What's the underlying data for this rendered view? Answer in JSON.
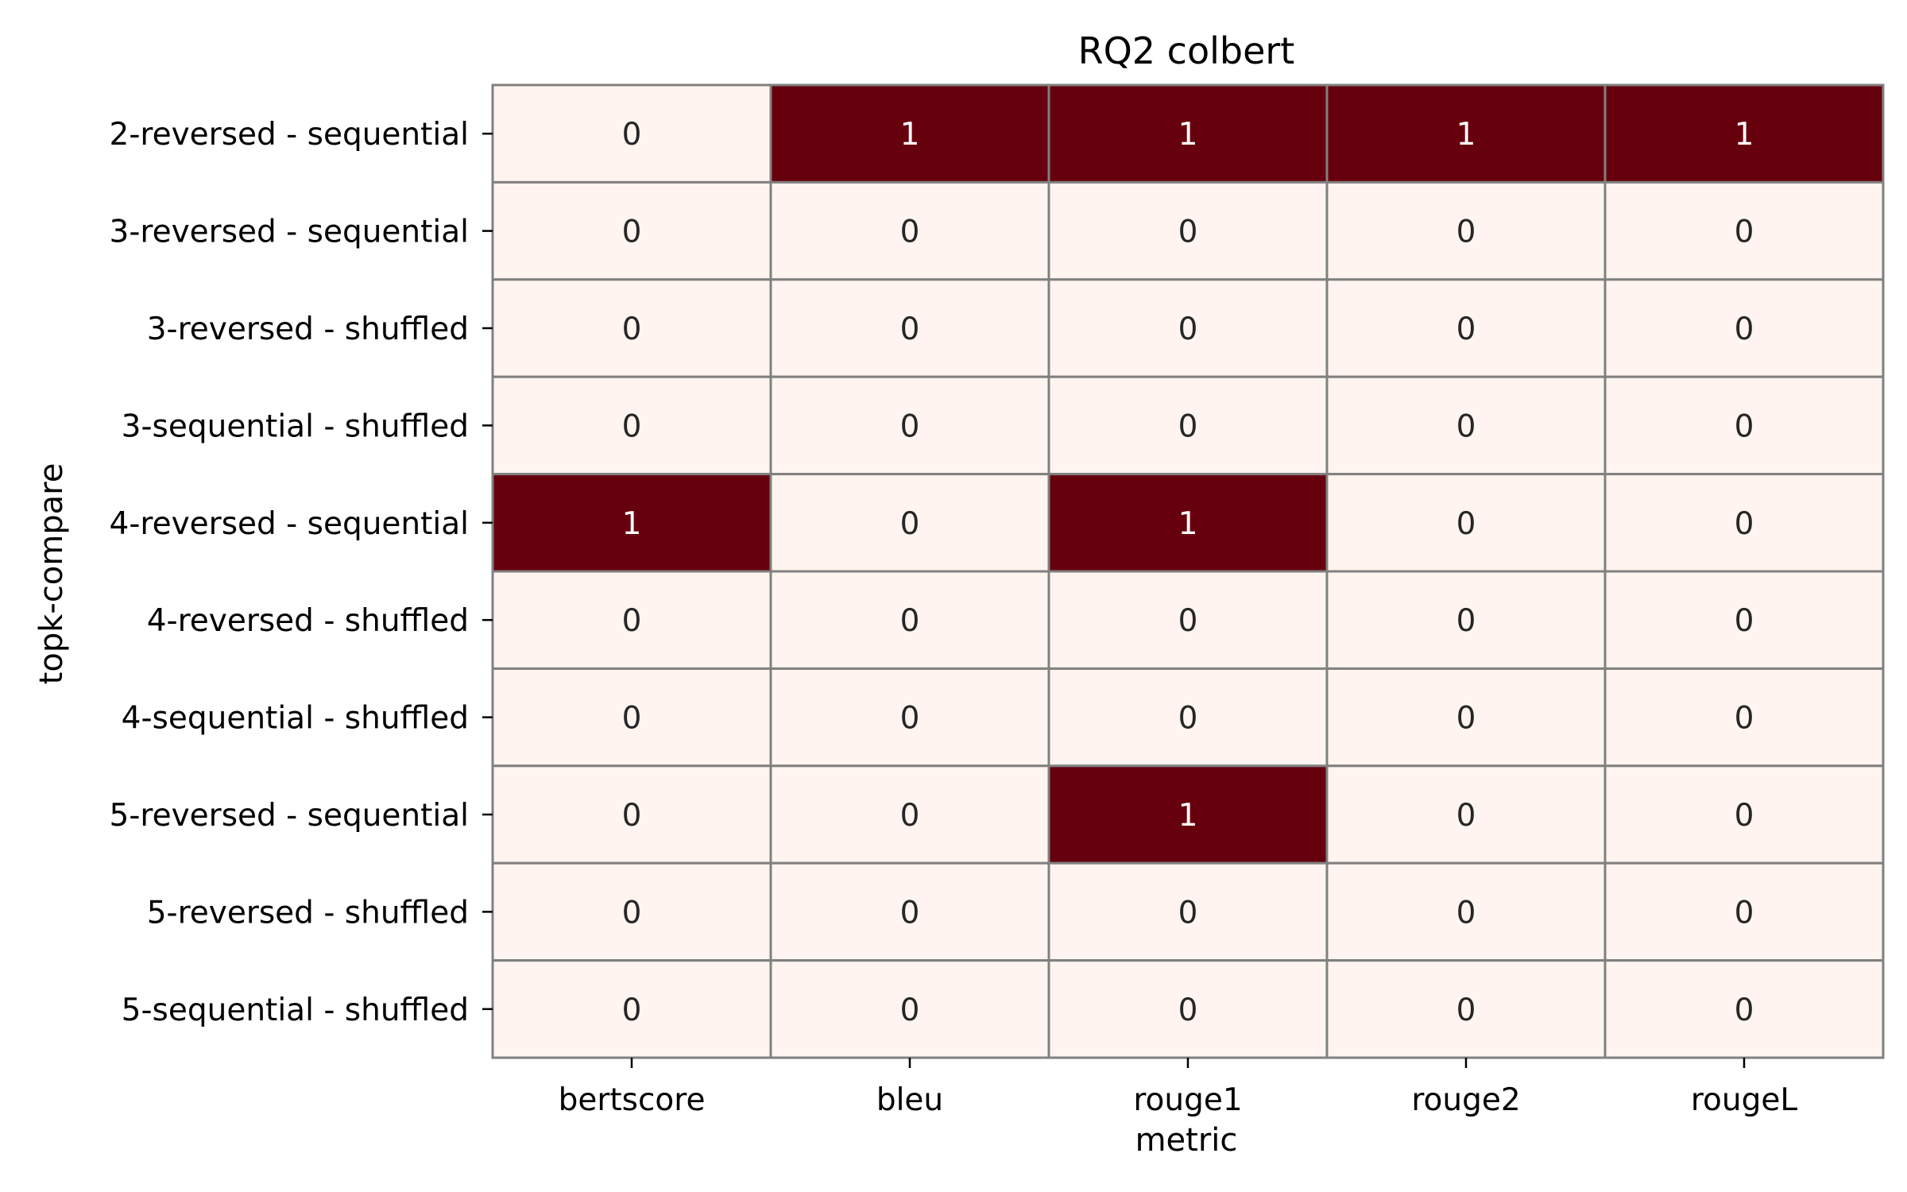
{
  "chart_data": {
    "type": "heatmap",
    "title": "RQ2 colbert",
    "xlabel": "metric",
    "ylabel": "topk-compare",
    "x_categories": [
      "bertscore",
      "bleu",
      "rouge1",
      "rouge2",
      "rougeL"
    ],
    "y_categories": [
      "2-reversed - sequential",
      "3-reversed - sequential",
      "3-reversed - shuffled",
      "3-sequential - shuffled",
      "4-reversed - sequential",
      "4-reversed - shuffled",
      "4-sequential - shuffled",
      "5-reversed - sequential",
      "5-reversed - shuffled",
      "5-sequential - shuffled"
    ],
    "values": [
      [
        0,
        1,
        1,
        1,
        1
      ],
      [
        0,
        0,
        0,
        0,
        0
      ],
      [
        0,
        0,
        0,
        0,
        0
      ],
      [
        0,
        0,
        0,
        0,
        0
      ],
      [
        1,
        0,
        1,
        0,
        0
      ],
      [
        0,
        0,
        0,
        0,
        0
      ],
      [
        0,
        0,
        0,
        0,
        0
      ],
      [
        0,
        0,
        1,
        0,
        0
      ],
      [
        0,
        0,
        0,
        0,
        0
      ],
      [
        0,
        0,
        0,
        0,
        0
      ]
    ],
    "value_range": [
      0,
      1
    ],
    "colormap": {
      "low": "#fff4ef",
      "high": "#67000d"
    },
    "cell_border_color": "#808080",
    "annotation_colors": {
      "on_low": "#262626",
      "on_high": "#ffffff"
    },
    "legend": "none",
    "grid": false
  }
}
